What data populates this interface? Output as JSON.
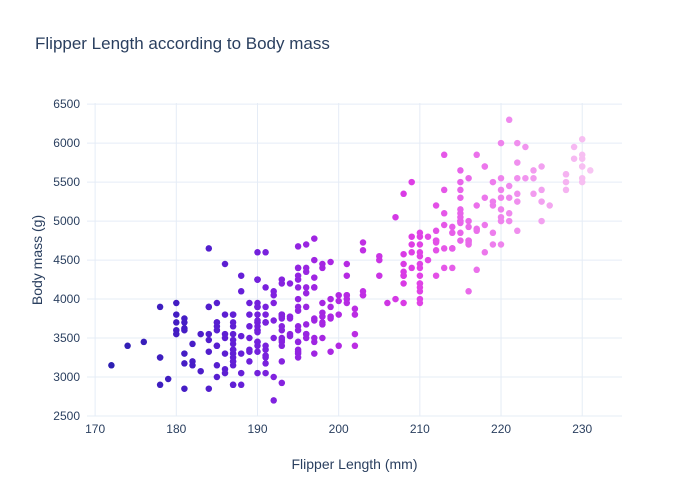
{
  "chart_data": {
    "type": "scatter",
    "title": "Flipper Length according to Body mass",
    "xlabel": "Flipper Length (mm)",
    "ylabel": "Body mass (g)",
    "xlim": [
      169.0,
      234.9
    ],
    "ylim": [
      2487,
      6515
    ],
    "xticks": [
      170,
      180,
      190,
      200,
      210,
      220,
      230
    ],
    "yticks": [
      2500,
      3000,
      3500,
      4000,
      4500,
      5000,
      5500,
      6000,
      6500
    ],
    "grid": true,
    "legend": "none",
    "marker_size_px": 6.5,
    "color_mapping": "marker color encodes flipper length (x value), dark indigo at 172mm to light pink at 231mm",
    "color_domain": [
      172,
      231
    ],
    "colorscale": [
      [
        0.0,
        "#2e1fb2"
      ],
      [
        0.17,
        "#481dc7"
      ],
      [
        0.27,
        "#661fd8"
      ],
      [
        0.34,
        "#8022df"
      ],
      [
        0.47,
        "#b027e3"
      ],
      [
        0.63,
        "#df3ee5"
      ],
      [
        0.78,
        "#ec77ec"
      ],
      [
        1.0,
        "#f8c5f3"
      ]
    ],
    "points": [
      [
        181,
        3750
      ],
      [
        186,
        3800
      ],
      [
        195,
        3250
      ],
      [
        193,
        3450
      ],
      [
        190,
        3650
      ],
      [
        181,
        3625
      ],
      [
        195,
        4675
      ],
      [
        193,
        3475
      ],
      [
        190,
        4250
      ],
      [
        186,
        3300
      ],
      [
        180,
        3700
      ],
      [
        182,
        3200
      ],
      [
        191,
        3800
      ],
      [
        198,
        4400
      ],
      [
        185,
        3700
      ],
      [
        195,
        3450
      ],
      [
        197,
        4500
      ],
      [
        184,
        3325
      ],
      [
        194,
        4200
      ],
      [
        174,
        3400
      ],
      [
        180,
        3600
      ],
      [
        189,
        3800
      ],
      [
        185,
        3950
      ],
      [
        180,
        3800
      ],
      [
        187,
        3800
      ],
      [
        183,
        3550
      ],
      [
        187,
        3200
      ],
      [
        172,
        3150
      ],
      [
        180,
        3950
      ],
      [
        178,
        3250
      ],
      [
        178,
        3900
      ],
      [
        188,
        3300
      ],
      [
        184,
        3900
      ],
      [
        195,
        3325
      ],
      [
        196,
        4150
      ],
      [
        190,
        3950
      ],
      [
        180,
        3550
      ],
      [
        181,
        3300
      ],
      [
        184,
        4650
      ],
      [
        182,
        3150
      ],
      [
        195,
        3900
      ],
      [
        186,
        3100
      ],
      [
        196,
        4400
      ],
      [
        185,
        3000
      ],
      [
        190,
        4600
      ],
      [
        182,
        3425
      ],
      [
        179,
        2975
      ],
      [
        190,
        3450
      ],
      [
        191,
        4150
      ],
      [
        186,
        3500
      ],
      [
        188,
        4300
      ],
      [
        190,
        3450
      ],
      [
        200,
        4050
      ],
      [
        187,
        2900
      ],
      [
        191,
        3700
      ],
      [
        186,
        3550
      ],
      [
        193,
        3800
      ],
      [
        181,
        2850
      ],
      [
        194,
        3750
      ],
      [
        185,
        3150
      ],
      [
        195,
        4400
      ],
      [
        185,
        3600
      ],
      [
        192,
        4050
      ],
      [
        184,
        2850
      ],
      [
        192,
        3950
      ],
      [
        195,
        3350
      ],
      [
        188,
        4100
      ],
      [
        190,
        3050
      ],
      [
        198,
        4450
      ],
      [
        190,
        3600
      ],
      [
        190,
        3900
      ],
      [
        196,
        3550
      ],
      [
        197,
        4150
      ],
      [
        190,
        3700
      ],
      [
        195,
        4250
      ],
      [
        191,
        3700
      ],
      [
        184,
        3900
      ],
      [
        187,
        3550
      ],
      [
        195,
        4000
      ],
      [
        189,
        3200
      ],
      [
        196,
        4700
      ],
      [
        187,
        3800
      ],
      [
        193,
        4200
      ],
      [
        191,
        3350
      ],
      [
        194,
        3550
      ],
      [
        190,
        3800
      ],
      [
        189,
        3500
      ],
      [
        189,
        3950
      ],
      [
        190,
        3600
      ],
      [
        202,
        3550
      ],
      [
        205,
        4300
      ],
      [
        185,
        3400
      ],
      [
        186,
        4450
      ],
      [
        187,
        3300
      ],
      [
        208,
        4300
      ],
      [
        190,
        3700
      ],
      [
        196,
        4350
      ],
      [
        178,
        2900
      ],
      [
        192,
        4100
      ],
      [
        192,
        3725
      ],
      [
        203,
        4725
      ],
      [
        183,
        3075
      ],
      [
        190,
        4250
      ],
      [
        193,
        2925
      ],
      [
        184,
        3550
      ],
      [
        199,
        3750
      ],
      [
        190,
        3900
      ],
      [
        181,
        3175
      ],
      [
        197,
        4775
      ],
      [
        198,
        3825
      ],
      [
        191,
        4600
      ],
      [
        193,
        3200
      ],
      [
        197,
        4275
      ],
      [
        191,
        3900
      ],
      [
        196,
        4075
      ],
      [
        188,
        2900
      ],
      [
        199,
        3775
      ],
      [
        189,
        3350
      ],
      [
        189,
        3325
      ],
      [
        187,
        3150
      ],
      [
        198,
        3500
      ],
      [
        176,
        3450
      ],
      [
        202,
        3875
      ],
      [
        186,
        3050
      ],
      [
        199,
        4000
      ],
      [
        191,
        3275
      ],
      [
        195,
        4300
      ],
      [
        191,
        3050
      ],
      [
        210,
        4000
      ],
      [
        190,
        3325
      ],
      [
        197,
        3500
      ],
      [
        193,
        3500
      ],
      [
        199,
        4475
      ],
      [
        187,
        3425
      ],
      [
        190,
        3900
      ],
      [
        191,
        3175
      ],
      [
        200,
        3975
      ],
      [
        185,
        3400
      ],
      [
        193,
        4250
      ],
      [
        193,
        3400
      ],
      [
        187,
        3475
      ],
      [
        188,
        3050
      ],
      [
        190,
        3725
      ],
      [
        192,
        3000
      ],
      [
        185,
        3650
      ],
      [
        190,
        4250
      ],
      [
        184,
        3475
      ],
      [
        195,
        3450
      ],
      [
        193,
        3750
      ],
      [
        187,
        3700
      ],
      [
        201,
        4000
      ],
      [
        192,
        3500
      ],
      [
        196,
        3900
      ],
      [
        193,
        3650
      ],
      [
        188,
        3525
      ],
      [
        197,
        3725
      ],
      [
        198,
        3950
      ],
      [
        178,
        3250
      ],
      [
        197,
        3750
      ],
      [
        195,
        4150
      ],
      [
        198,
        3700
      ],
      [
        193,
        3800
      ],
      [
        194,
        3775
      ],
      [
        185,
        3700
      ],
      [
        201,
        4050
      ],
      [
        190,
        3575
      ],
      [
        201,
        4050
      ],
      [
        197,
        3300
      ],
      [
        181,
        3700
      ],
      [
        190,
        3450
      ],
      [
        195,
        4400
      ],
      [
        181,
        3600
      ],
      [
        191,
        3400
      ],
      [
        187,
        2900
      ],
      [
        193,
        3800
      ],
      [
        195,
        3300
      ],
      [
        197,
        4150
      ],
      [
        200,
        3400
      ],
      [
        200,
        3800
      ],
      [
        191,
        3700
      ],
      [
        205,
        4550
      ],
      [
        187,
        3200
      ],
      [
        201,
        4300
      ],
      [
        187,
        3350
      ],
      [
        203,
        4100
      ],
      [
        195,
        3600
      ],
      [
        199,
        3900
      ],
      [
        195,
        3850
      ],
      [
        210,
        4800
      ],
      [
        192,
        2700
      ],
      [
        205,
        4500
      ],
      [
        210,
        3950
      ],
      [
        187,
        3650
      ],
      [
        196,
        3550
      ],
      [
        196,
        3500
      ],
      [
        196,
        3675
      ],
      [
        201,
        4450
      ],
      [
        190,
        3400
      ],
      [
        212,
        4300
      ],
      [
        187,
        3250
      ],
      [
        198,
        3675
      ],
      [
        199,
        3325
      ],
      [
        201,
        3950
      ],
      [
        193,
        3600
      ],
      [
        203,
        4050
      ],
      [
        187,
        3350
      ],
      [
        197,
        3450
      ],
      [
        191,
        3250
      ],
      [
        203,
        4050
      ],
      [
        202,
        3800
      ],
      [
        194,
        3525
      ],
      [
        206,
        3950
      ],
      [
        189,
        3650
      ],
      [
        195,
        3650
      ],
      [
        207,
        4000
      ],
      [
        202,
        3400
      ],
      [
        193,
        3775
      ],
      [
        210,
        4100
      ],
      [
        198,
        3775
      ],
      [
        211,
        4500
      ],
      [
        230,
        5700
      ],
      [
        210,
        4450
      ],
      [
        218,
        5700
      ],
      [
        215,
        5400
      ],
      [
        210,
        4550
      ],
      [
        211,
        4800
      ],
      [
        219,
        5200
      ],
      [
        209,
        4400
      ],
      [
        215,
        5150
      ],
      [
        214,
        4650
      ],
      [
        216,
        5550
      ],
      [
        214,
        4650
      ],
      [
        213,
        5850
      ],
      [
        210,
        4200
      ],
      [
        217,
        5850
      ],
      [
        210,
        4150
      ],
      [
        221,
        6300
      ],
      [
        209,
        4800
      ],
      [
        222,
        5350
      ],
      [
        218,
        5700
      ],
      [
        215,
        5000
      ],
      [
        213,
        4400
      ],
      [
        215,
        5050
      ],
      [
        215,
        5000
      ],
      [
        215,
        5100
      ],
      [
        216,
        4100
      ],
      [
        215,
        5650
      ],
      [
        210,
        4600
      ],
      [
        220,
        5550
      ],
      [
        222,
        5250
      ],
      [
        209,
        4700
      ],
      [
        207,
        5050
      ],
      [
        230,
        6050
      ],
      [
        220,
        5150
      ],
      [
        220,
        5400
      ],
      [
        213,
        4950
      ],
      [
        219,
        5250
      ],
      [
        208,
        4350
      ],
      [
        208,
        5350
      ],
      [
        208,
        3950
      ],
      [
        225,
        5700
      ],
      [
        210,
        4300
      ],
      [
        216,
        4750
      ],
      [
        222,
        5550
      ],
      [
        217,
        4900
      ],
      [
        210,
        4200
      ],
      [
        225,
        5400
      ],
      [
        213,
        5100
      ],
      [
        215,
        5300
      ],
      [
        210,
        4850
      ],
      [
        220,
        5300
      ],
      [
        210,
        4400
      ],
      [
        225,
        5000
      ],
      [
        217,
        4900
      ],
      [
        220,
        5050
      ],
      [
        208,
        4300
      ],
      [
        220,
        5000
      ],
      [
        208,
        4450
      ],
      [
        224,
        5550
      ],
      [
        208,
        4200
      ],
      [
        221,
        5300
      ],
      [
        214,
        4400
      ],
      [
        231,
        5650
      ],
      [
        219,
        4700
      ],
      [
        230,
        5700
      ],
      [
        214,
        4650
      ],
      [
        229,
        5800
      ],
      [
        220,
        4700
      ],
      [
        223,
        5550
      ],
      [
        216,
        4750
      ],
      [
        221,
        5000
      ],
      [
        221,
        5100
      ],
      [
        217,
        5200
      ],
      [
        216,
        4700
      ],
      [
        230,
        5800
      ],
      [
        209,
        4600
      ],
      [
        220,
        6000
      ],
      [
        215,
        4750
      ],
      [
        223,
        5950
      ],
      [
        212,
        4625
      ],
      [
        221,
        5450
      ],
      [
        212,
        4725
      ],
      [
        224,
        5350
      ],
      [
        212,
        4750
      ],
      [
        228,
        5600
      ],
      [
        218,
        4600
      ],
      [
        218,
        5300
      ],
      [
        212,
        4875
      ],
      [
        230,
        5550
      ],
      [
        218,
        4950
      ],
      [
        228,
        5400
      ],
      [
        212,
        4750
      ],
      [
        224,
        5650
      ],
      [
        214,
        4850
      ],
      [
        226,
        5200
      ],
      [
        216,
        4925
      ],
      [
        222,
        4875
      ],
      [
        203,
        4625
      ],
      [
        225,
        5250
      ],
      [
        219,
        4850
      ],
      [
        228,
        5600
      ],
      [
        215,
        4975
      ],
      [
        228,
        5500
      ],
      [
        216,
        4725
      ],
      [
        215,
        5500
      ],
      [
        210,
        4700
      ],
      [
        219,
        5500
      ],
      [
        208,
        4575
      ],
      [
        209,
        5500
      ],
      [
        216,
        5000
      ],
      [
        229,
        5950
      ],
      [
        213,
        4650
      ],
      [
        230,
        5500
      ],
      [
        217,
        4375
      ],
      [
        230,
        5850
      ],
      [
        217,
        4875
      ],
      [
        222,
        6000
      ],
      [
        214,
        4925
      ],
      [
        215,
        4850
      ],
      [
        222,
        5750
      ],
      [
        212,
        5200
      ],
      [
        213,
        5400
      ]
    ]
  },
  "colors": {
    "background": "#ffffff",
    "grid": "#e5ecf6",
    "axis_text": "#2a3f5f",
    "title_text": "#2a3f5f"
  }
}
